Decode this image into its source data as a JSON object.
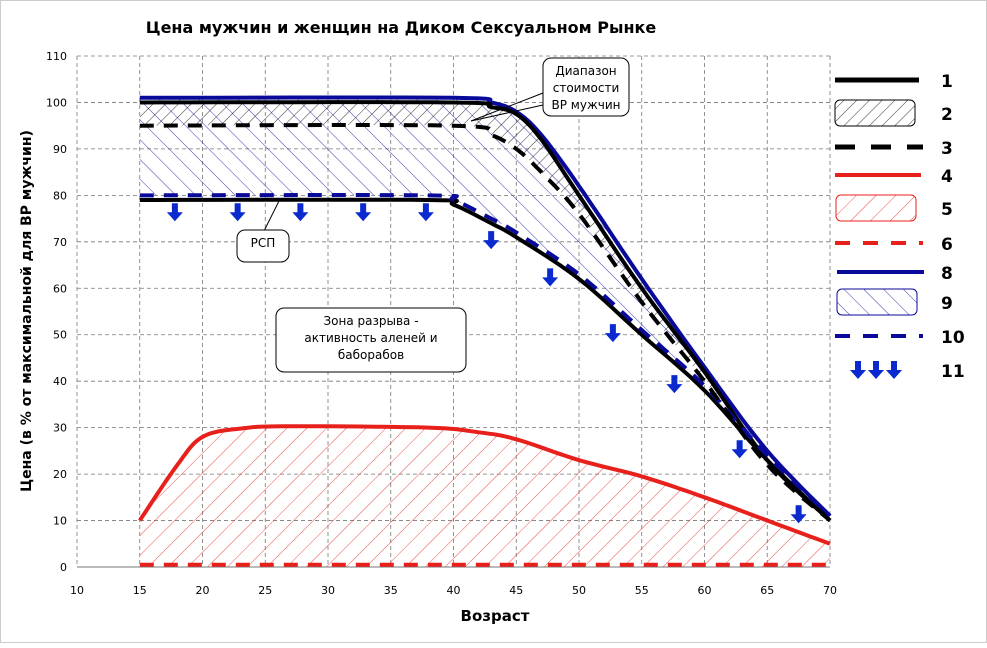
{
  "chart_data": {
    "type": "line",
    "title": "Цена мужчин и женщин на Диком Сексуальном  Рынке",
    "xlabel": "Возраст",
    "ylabel": "Цена (в % от максимальной для ВР мужчин)",
    "xlim": [
      10,
      70
    ],
    "ylim": [
      0,
      110
    ],
    "x_ticks": [
      10,
      15,
      20,
      25,
      30,
      35,
      40,
      45,
      50,
      55,
      60,
      65,
      70
    ],
    "y_ticks": [
      0,
      10,
      20,
      30,
      40,
      50,
      60,
      70,
      80,
      90,
      100,
      110
    ],
    "grid": true,
    "legend_placement": "right",
    "series": [
      {
        "name": "1",
        "style": "solid",
        "color": "#000000",
        "points": [
          [
            15,
            100
          ],
          [
            40,
            100
          ],
          [
            43,
            99
          ],
          [
            45,
            97.5
          ],
          [
            47,
            92
          ],
          [
            50,
            80
          ],
          [
            55,
            60
          ],
          [
            60,
            42
          ],
          [
            65,
            23
          ],
          [
            70,
            10
          ]
        ]
      },
      {
        "name": "1",
        "style": "solid",
        "color": "#000000",
        "points": [
          [
            15,
            79
          ],
          [
            38,
            79
          ],
          [
            40,
            78
          ],
          [
            43,
            74
          ],
          [
            45,
            71
          ],
          [
            50,
            62
          ],
          [
            55,
            50
          ],
          [
            60,
            38
          ],
          [
            65,
            23
          ],
          [
            70,
            10
          ]
        ]
      },
      {
        "name": "3",
        "style": "dashed",
        "color": "#000000",
        "points": [
          [
            15,
            95
          ],
          [
            40,
            95
          ],
          [
            43,
            93
          ],
          [
            45,
            90
          ],
          [
            47,
            85
          ],
          [
            50,
            76
          ],
          [
            55,
            57
          ],
          [
            60,
            40
          ],
          [
            65,
            22
          ],
          [
            70,
            10
          ]
        ]
      },
      {
        "name": "4",
        "style": "solid",
        "color": "#e8201c",
        "points": [
          [
            15,
            10
          ],
          [
            18,
            22
          ],
          [
            20,
            28
          ],
          [
            23,
            29.8
          ],
          [
            27,
            30.3
          ],
          [
            38,
            30
          ],
          [
            42,
            29
          ],
          [
            45,
            27.5
          ],
          [
            50,
            23
          ],
          [
            55,
            19.5
          ],
          [
            60,
            15
          ],
          [
            65,
            10
          ],
          [
            70,
            5
          ]
        ]
      },
      {
        "name": "6",
        "style": "dashed",
        "color": "#e8201c",
        "points": [
          [
            15,
            0.5
          ],
          [
            70,
            0.5
          ]
        ]
      },
      {
        "name": "8",
        "style": "solid",
        "color": "#0a0a9a",
        "points": [
          [
            15,
            101
          ],
          [
            40,
            101
          ],
          [
            43,
            100
          ],
          [
            45,
            98
          ],
          [
            47,
            93
          ],
          [
            50,
            82
          ],
          [
            55,
            62
          ],
          [
            60,
            43
          ],
          [
            65,
            25
          ],
          [
            70,
            11
          ]
        ]
      },
      {
        "name": "10",
        "style": "dashed",
        "color": "#0a0a9a",
        "points": [
          [
            15,
            80
          ],
          [
            38,
            80
          ],
          [
            40,
            79
          ],
          [
            43,
            75
          ],
          [
            45,
            72
          ],
          [
            50,
            63
          ],
          [
            55,
            51
          ],
          [
            60,
            39
          ],
          [
            65,
            24
          ],
          [
            70,
            11
          ]
        ]
      }
    ],
    "hatched_areas": [
      {
        "name": "2",
        "color": "#000000",
        "between": [
          "1",
          "3"
        ]
      },
      {
        "name": "5",
        "color": "#e8201c",
        "between": [
          "4",
          "zero"
        ]
      },
      {
        "name": "9",
        "color": "#0a0a9a",
        "between": [
          "8",
          "10"
        ]
      }
    ],
    "arrows": {
      "name": "11",
      "color": "#0a2ad0",
      "points": [
        [
          17.8,
          77
        ],
        [
          22.8,
          77
        ],
        [
          27.8,
          77
        ],
        [
          32.8,
          77
        ],
        [
          37.8,
          77
        ],
        [
          43,
          71
        ],
        [
          47.7,
          63
        ],
        [
          52.7,
          51
        ],
        [
          57.6,
          40
        ],
        [
          62.8,
          26
        ],
        [
          67.5,
          12
        ]
      ]
    },
    "annotations": [
      {
        "text": [
          "Диапазон",
          "стоимости",
          "ВР мужчин"
        ]
      },
      {
        "text": [
          "РСП"
        ]
      },
      {
        "text": [
          "Зона разрыва -",
          "активность аленей и",
          "баборабов"
        ]
      }
    ],
    "legend": [
      "1",
      "2",
      "3",
      "4",
      "5",
      "6",
      "8",
      "9",
      "10",
      "11"
    ]
  }
}
